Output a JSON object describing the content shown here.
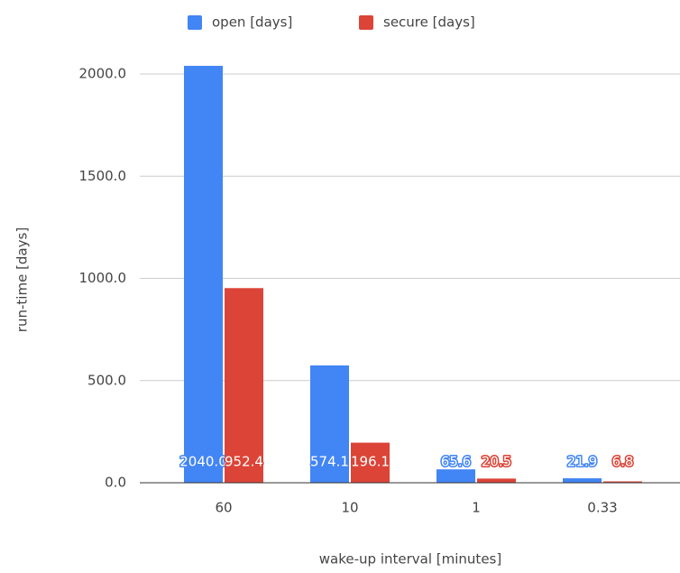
{
  "chart_data": {
    "type": "bar",
    "categories": [
      "60",
      "10",
      "1",
      "0.33"
    ],
    "series": [
      {
        "name": "open [days]",
        "color": "#4285f4",
        "values": [
          2040,
          574.1,
          65.6,
          21.9
        ],
        "value_labels": [
          "2040.0",
          "574.1",
          "65.6",
          "21.9"
        ]
      },
      {
        "name": "secure [days]",
        "color": "#db4437",
        "values": [
          952.4,
          196.1,
          20.5,
          6.8
        ]
      }
    ],
    "x_label": "wake-up interval [minutes]",
    "y_label": "run-time [days]",
    "ylim": [
      0,
      2000
    ],
    "yticks": [
      {
        "value": 0,
        "label": "0.0"
      },
      {
        "value": 500,
        "label": "500.0"
      },
      {
        "value": 1000,
        "label": "1000.0"
      },
      {
        "value": 1500,
        "label": "1500.0"
      },
      {
        "value": 2000,
        "label": "2000.0"
      }
    ],
    "grid": true,
    "legend": "top"
  }
}
